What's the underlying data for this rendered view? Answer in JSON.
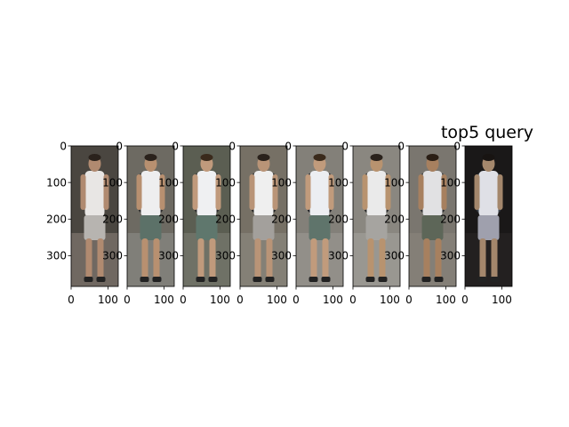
{
  "figure": {
    "title": "top5 query",
    "y_ticks": [
      "0",
      "100",
      "200",
      "300"
    ],
    "x_ticks": [
      "0",
      "100"
    ],
    "panels": [
      {
        "id": 1,
        "background": "#4a4640",
        "shirt": "#e8e6e4",
        "shorts": "#b7b4b0",
        "hair": "#2a221c",
        "skin": "#b08a70",
        "backpack": "none",
        "tint": "#8a7f78"
      },
      {
        "id": 2,
        "background": "#6d6a62",
        "shirt": "#eeeeef",
        "shorts": "#5c7168",
        "hair": "#2a221c",
        "skin": "#b89070",
        "backpack": "#2d2d2d",
        "tint": "#8e8e88"
      },
      {
        "id": 3,
        "background": "#5b5e52",
        "shirt": "#eff0f2",
        "shorts": "#5f776d",
        "hair": "#3a2a1c",
        "skin": "#c09a7c",
        "backpack": "#2d2d2d",
        "tint": "#7d7f74"
      },
      {
        "id": 4,
        "background": "#767065",
        "shirt": "#efefef",
        "shorts": "#a3a09c",
        "hair": "#2a221c",
        "skin": "#b99477",
        "backpack": "#262626",
        "tint": "#8d8a82"
      },
      {
        "id": 5,
        "background": "#838079",
        "shirt": "#eceef2",
        "shorts": "#5f746b",
        "hair": "#3a2a1c",
        "skin": "#c19b7c",
        "backpack": "#202024",
        "tint": "#9c9a94"
      },
      {
        "id": 6,
        "background": "#8a8780",
        "shirt": "#eaeaea",
        "shorts": "#a6a4a0",
        "hair": "#2a221c",
        "skin": "#b8936f",
        "backpack": "#2a2a2a",
        "tint": "#a3a19c"
      },
      {
        "id": 7,
        "background": "#7a766f",
        "shirt": "#e1e1e3",
        "shorts": "#5d6658",
        "hair": "#2a1e15",
        "skin": "#a7805f",
        "backpack": "#2f3030",
        "tint": "#8a857d"
      },
      {
        "id": 8,
        "background": "#1a1818",
        "shirt": "#dfe0e6",
        "shorts": "#9fa0ad",
        "hair": "#181412",
        "skin": "#a4876c",
        "backpack": "#3a4048",
        "tint": "#2a2626"
      }
    ]
  }
}
